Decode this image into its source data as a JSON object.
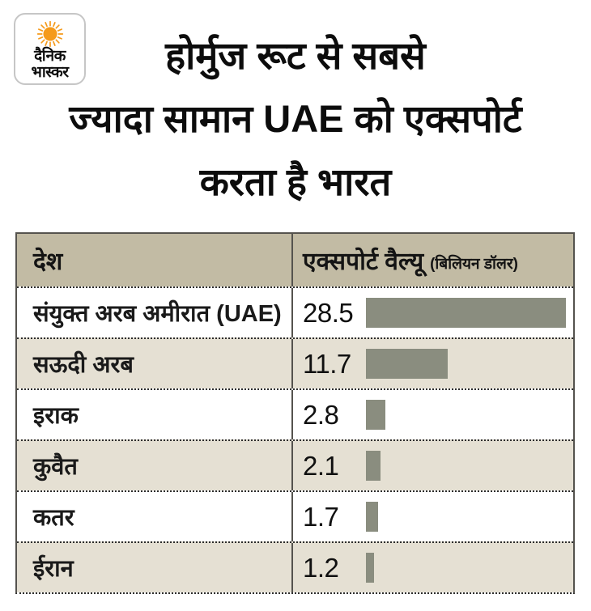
{
  "brand": {
    "logo_line1": "दैनिक",
    "logo_line2": "भास्कर"
  },
  "title": {
    "line1": "होर्मुज रूट से सबसे",
    "line2": "ज्यादा सामान UAE को एक्सपोर्ट",
    "line3": "करता है भारत"
  },
  "table": {
    "header": {
      "country_label": "देश",
      "value_label": "एक्सपोर्ट वैल्यू",
      "value_unit": "(बिलियन डॉलर)"
    },
    "rows": [
      {
        "country": "संयुक्त अरब अमीरात (UAE)",
        "value": "28.5"
      },
      {
        "country": "सऊदी अरब",
        "value": "11.7"
      },
      {
        "country": "इराक",
        "value": "2.8"
      },
      {
        "country": "कुवैत",
        "value": "2.1"
      },
      {
        "country": "कतर",
        "value": "1.7"
      },
      {
        "country": "ईरान",
        "value": "1.2"
      }
    ]
  },
  "colors": {
    "bar": "#8A8D7F",
    "table_header_bg": "#C2BBA4",
    "alt_row_bg": "#E5E0D3",
    "border": "#55534E",
    "sun_orange": "#F59A1A"
  },
  "chart_data": {
    "type": "bar",
    "orientation": "horizontal",
    "title": "होर्मुज रूट से सबसे ज्यादा सामान UAE को एक्सपोर्ट करता है भारत",
    "categories": [
      "संयुक्त अरब अमीरात (UAE)",
      "सऊदी अरब",
      "इराक",
      "कुवैत",
      "कतर",
      "ईरान"
    ],
    "values": [
      28.5,
      11.7,
      2.8,
      2.1,
      1.7,
      1.2
    ],
    "value_axis_label": "एक्सपोर्ट वैल्यू (बिलियन डॉलर)",
    "unit": "बिलियन डॉलर",
    "xlim": [
      0,
      30
    ],
    "grid": false,
    "legend": false,
    "bar_color": "#8A8D7F",
    "source_brand": "दैनिक भास्कर"
  }
}
